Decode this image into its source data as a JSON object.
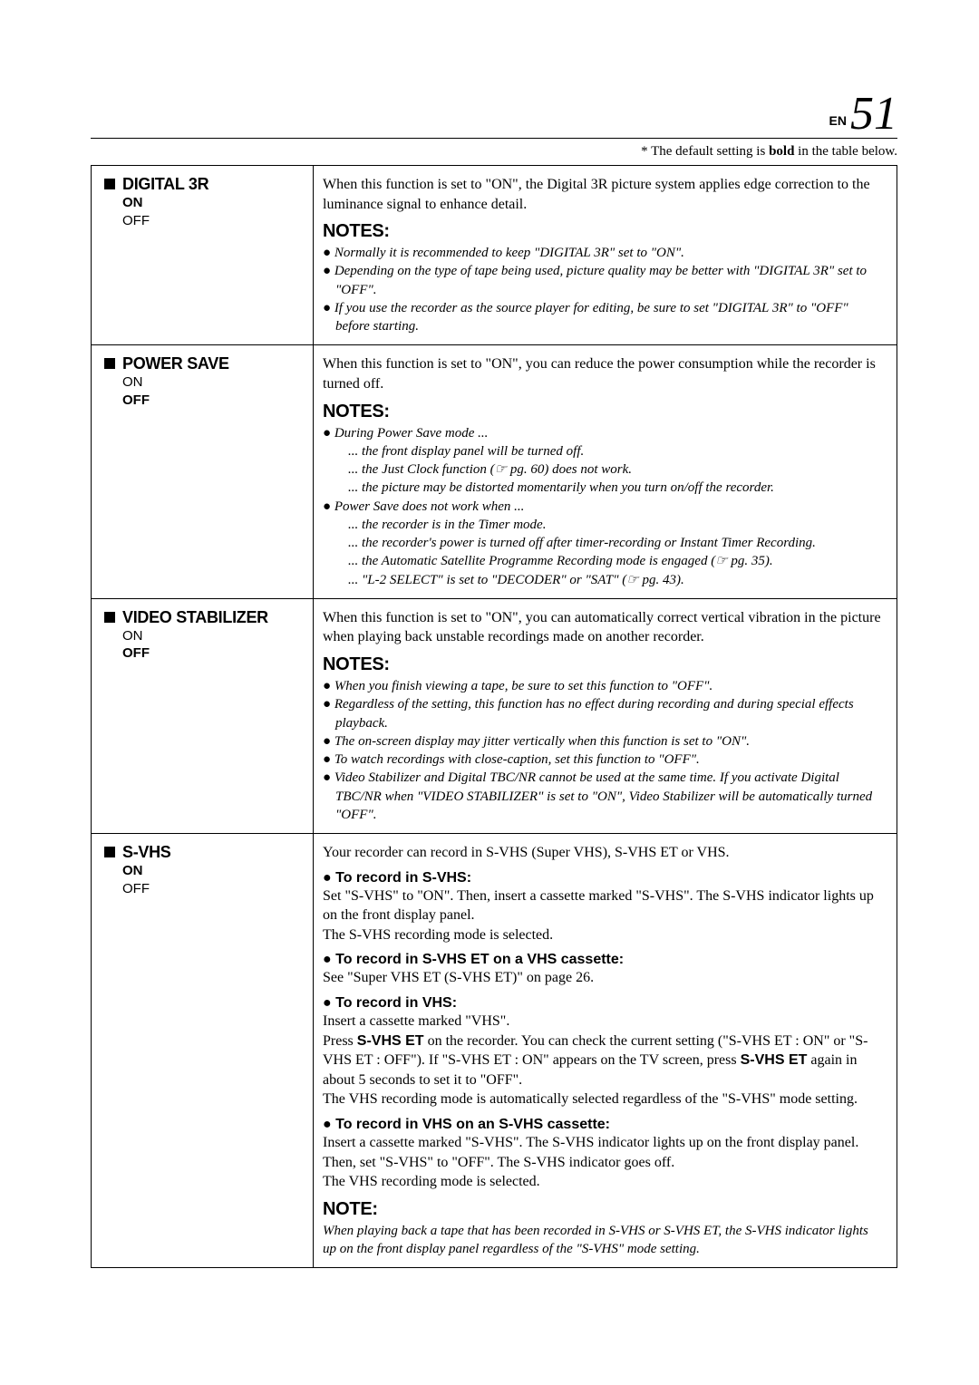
{
  "header": {
    "lang": "EN",
    "page": "51"
  },
  "default_note_pre": "* The default setting is ",
  "default_note_bold": "bold",
  "default_note_post": " in the table below.",
  "rows": [
    {
      "title": "DIGITAL 3R",
      "on": "ON",
      "off": "OFF",
      "on_bold": true,
      "desc": "When this function is set to \"ON\", the Digital 3R picture system applies edge correction to the luminance signal to enhance detail.",
      "notes_hd": "NOTES:",
      "notes": [
        "Normally it is recommended to keep \"DIGITAL 3R\" set to \"ON\".",
        "Depending on the type of tape being used, picture quality may be better with \"DIGITAL 3R\" set to \"OFF\".",
        "If you use the recorder as the source player for editing, be sure to set \"DIGITAL 3R\" to \"OFF\" before starting."
      ]
    },
    {
      "title": "POWER SAVE",
      "on": "ON",
      "off": "OFF",
      "on_bold": false,
      "desc": "When this function is set to \"ON\", you can reduce the power consumption while the recorder is turned off.",
      "notes_hd": "NOTES:",
      "notes_raw": [
        {
          "lead": "During Power Save mode ...",
          "subs": [
            "... the front display panel will be turned off.",
            "... the Just Clock function (☞ pg. 60) does not work.",
            "... the picture may be distorted momentarily when you turn on/off the recorder."
          ]
        },
        {
          "lead": "Power Save does not work when ...",
          "subs": [
            "... the recorder is in the Timer mode.",
            "... the recorder's power is turned off after timer-recording or Instant Timer Recording.",
            "... the Automatic Satellite Programme Recording mode is engaged (☞ pg. 35).",
            "... \"L-2 SELECT\" is set to \"DECODER\" or \"SAT\" (☞ pg. 43)."
          ]
        }
      ]
    },
    {
      "title": "VIDEO STABILIZER",
      "on": "ON",
      "off": "OFF",
      "on_bold": false,
      "desc": "When this function is set to \"ON\", you can automatically correct vertical vibration in the picture when playing back unstable recordings made on another recorder.",
      "notes_hd": "NOTES:",
      "notes": [
        "When you finish viewing a tape, be sure to set this function to \"OFF\".",
        "Regardless of the setting, this function has no effect during recording and during special effects playback.",
        "The on-screen display may jitter vertically when this function is set to \"ON\".",
        "To watch recordings with close-caption, set this function to \"OFF\".",
        "Video Stabilizer and Digital TBC/NR cannot be used at the same time. If you activate Digital TBC/NR when \"VIDEO STABILIZER\" is set to \"ON\", Video Stabilizer will be automatically turned \"OFF\"."
      ]
    },
    {
      "title": "S-VHS",
      "on": "ON",
      "off": "OFF",
      "on_bold": true,
      "desc": "Your recorder can record in S-VHS (Super VHS), S-VHS ET or VHS.",
      "sections": [
        {
          "hd": "To record in S-VHS:",
          "body": "Set \"S-VHS\" to \"ON\". Then, insert a cassette marked \"S-VHS\". The S-VHS indicator lights up on the front display panel.\nThe S-VHS recording mode is selected."
        },
        {
          "hd": "To record in S-VHS ET on a VHS cassette:",
          "body": "See \"Super VHS ET (S-VHS ET)\" on page 26."
        },
        {
          "hd": "To record in VHS:",
          "body_html": true
        },
        {
          "hd": "To record in VHS on an S-VHS cassette:",
          "body": "Insert a cassette marked \"S-VHS\". The S-VHS indicator lights up on the front display panel. Then, set \"S-VHS\" to \"OFF\". The S-VHS indicator goes off.\nThe VHS recording mode is selected."
        }
      ],
      "vhs_lines": {
        "l1": "Insert a cassette marked \"VHS\".",
        "l2a": "Press ",
        "l2b": "S-VHS ET",
        "l2c": " on the recorder. You can check the current setting (\"S-VHS ET : ON\" or \"S-VHS ET : OFF\"). If \"S-VHS ET : ON\" appears on the TV screen, press ",
        "l2d": "S-VHS ET",
        "l2e": " again in about 5 seconds to set it to \"OFF\".",
        "l3": "The VHS recording mode is automatically selected regardless of the \"S-VHS\" mode setting."
      },
      "note_hd": "NOTE:",
      "note_single": "When playing back a tape that has been recorded in S-VHS or S-VHS ET, the S-VHS indicator lights up on the front display panel regardless of the \"S-VHS\" mode setting."
    }
  ]
}
